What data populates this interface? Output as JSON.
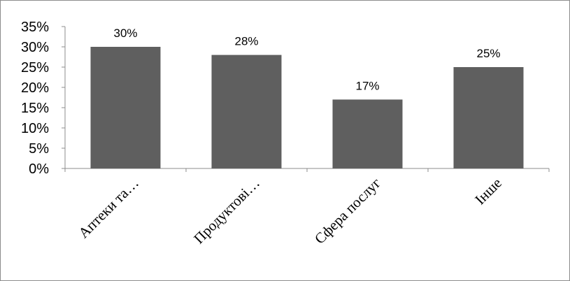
{
  "chart_data": {
    "type": "bar",
    "title": "",
    "xlabel": "",
    "ylabel": "",
    "categories": [
      "Аптеки та…",
      "Продуктові…",
      "Сфера послуг",
      "Інше"
    ],
    "values": [
      30,
      28,
      17,
      25
    ],
    "data_labels": [
      "30%",
      "28%",
      "17%",
      "25%"
    ],
    "ylim": [
      0,
      35
    ],
    "yticks": [
      0,
      5,
      10,
      15,
      20,
      25,
      30,
      35
    ],
    "ytick_labels": [
      "0%",
      "5%",
      "10%",
      "15%",
      "20%",
      "25%",
      "30%",
      "35%"
    ],
    "bar_color": "#5f5f5f",
    "axis_color": "#8c8c8c",
    "grid": false,
    "legend": "none"
  }
}
